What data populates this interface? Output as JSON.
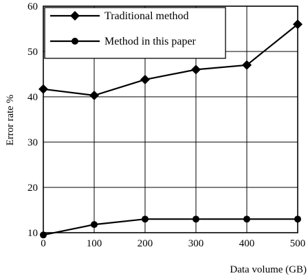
{
  "chart_data": {
    "type": "line",
    "title": "",
    "xlabel": "Data volume (GB)",
    "ylabel": "Error rate %",
    "x_ticks": [
      "0",
      "100",
      "200",
      "300",
      "400",
      "500"
    ],
    "y_ticks": [
      "10",
      "20",
      "30",
      "40",
      "50",
      "60"
    ],
    "xlim": [
      0,
      500
    ],
    "ylim": [
      10,
      60
    ],
    "grid": true,
    "legend_position": "top-left",
    "series": [
      {
        "name": "Traditional method",
        "marker": "diamond",
        "x": [
          0,
          100,
          200,
          300,
          400,
          500
        ],
        "y": [
          41.7,
          40.3,
          43.8,
          46.0,
          47.0,
          56.0
        ]
      },
      {
        "name": "Method in this paper",
        "marker": "circle",
        "x": [
          0,
          100,
          200,
          300,
          400,
          500
        ],
        "y": [
          9.5,
          11.8,
          13.0,
          13.0,
          13.0,
          13.0
        ]
      }
    ]
  },
  "colors": {
    "line": "#000000",
    "grid": "#000000",
    "background": "#ffffff"
  }
}
